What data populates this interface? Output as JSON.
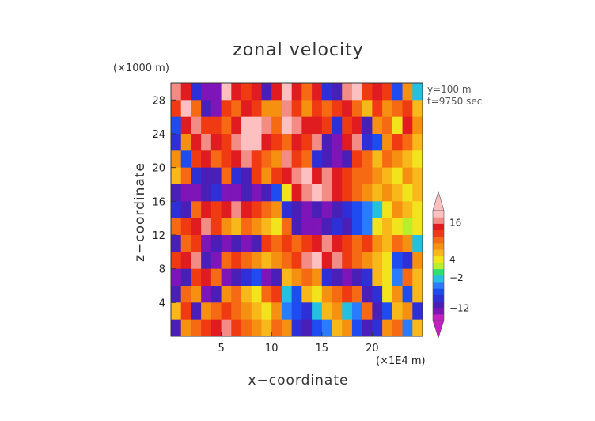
{
  "chart_data": {
    "type": "heatmap",
    "title": "zonal velocity",
    "xlabel": "x−coordinate",
    "ylabel": "z−coordinate",
    "x_unit_label": "(×1E4 m)",
    "y_unit_label": "(×1000 m)",
    "annotations": [
      "y=100 m",
      "t=9750 sec"
    ],
    "xlim": [
      0,
      25
    ],
    "ylim": [
      0,
      30
    ],
    "x_ticks": [
      "5",
      "10",
      "15",
      "20"
    ],
    "y_ticks": [
      "4",
      "8",
      "12",
      "16",
      "20",
      "24",
      "28"
    ],
    "colorbar": {
      "tick_labels": [
        "16",
        "4",
        "−2",
        "−12"
      ],
      "tick_values": [
        16,
        4,
        -2,
        -12
      ],
      "levels": [
        -16,
        -14,
        -12,
        -10,
        -8,
        -6,
        -4,
        -2,
        0,
        2,
        4,
        6,
        8,
        10,
        12,
        14,
        16,
        20
      ],
      "colors": [
        "#c41fc0",
        "#7d15b8",
        "#4a1fb8",
        "#2f2fd8",
        "#1f4cf0",
        "#2a7cff",
        "#25c0e0",
        "#2fe070",
        "#b8ee2c",
        "#f2e41c",
        "#f8b81a",
        "#f59010",
        "#f76a14",
        "#f03a12",
        "#e01c20",
        "#f48c86",
        "#fcc0c0"
      ],
      "extend": "both"
    },
    "grid": false,
    "z_values": [
      [
        14,
        12,
        -10,
        -14,
        -14,
        18,
        12,
        10,
        12,
        -12,
        12,
        18,
        12,
        8,
        12,
        -10,
        -12,
        14,
        16,
        10,
        12,
        10,
        -8,
        6,
        -4
      ],
      [
        10,
        16,
        8,
        -12,
        -14,
        10,
        8,
        12,
        10,
        6,
        6,
        14,
        10,
        6,
        10,
        8,
        10,
        12,
        8,
        4,
        10,
        6,
        8,
        10,
        4
      ],
      [
        -8,
        12,
        14,
        10,
        10,
        8,
        12,
        16,
        18,
        14,
        8,
        18,
        14,
        12,
        12,
        10,
        -10,
        10,
        12,
        -12,
        6,
        8,
        2,
        12,
        6
      ],
      [
        -10,
        6,
        12,
        14,
        12,
        10,
        14,
        18,
        16,
        12,
        10,
        8,
        12,
        10,
        14,
        -12,
        -14,
        12,
        14,
        -10,
        -8,
        6,
        10,
        8,
        4
      ],
      [
        6,
        -8,
        10,
        12,
        8,
        10,
        12,
        14,
        10,
        8,
        6,
        14,
        10,
        8,
        -10,
        -12,
        -14,
        -12,
        10,
        8,
        4,
        8,
        6,
        4,
        2
      ],
      [
        4,
        8,
        -10,
        -12,
        -12,
        8,
        -10,
        -12,
        10,
        6,
        10,
        12,
        14,
        16,
        12,
        14,
        12,
        10,
        8,
        8,
        6,
        4,
        2,
        6,
        4
      ],
      [
        -12,
        -14,
        -14,
        -12,
        -10,
        -14,
        -14,
        -12,
        -14,
        -12,
        -8,
        2,
        12,
        14,
        16,
        14,
        12,
        10,
        8,
        6,
        4,
        6,
        4,
        2,
        4
      ],
      [
        -10,
        -12,
        8,
        12,
        10,
        12,
        14,
        12,
        10,
        8,
        6,
        -10,
        -12,
        -14,
        -12,
        -14,
        -12,
        -10,
        -8,
        -6,
        -4,
        2,
        6,
        4,
        2
      ],
      [
        8,
        10,
        12,
        14,
        10,
        6,
        4,
        8,
        6,
        4,
        2,
        8,
        -12,
        -14,
        -14,
        -12,
        -10,
        -12,
        -8,
        -6,
        2,
        4,
        2,
        0,
        2
      ],
      [
        -12,
        8,
        10,
        -14,
        -12,
        -14,
        -12,
        -14,
        -12,
        10,
        8,
        10,
        8,
        10,
        12,
        14,
        12,
        10,
        8,
        10,
        6,
        4,
        8,
        6,
        -4
      ],
      [
        10,
        12,
        14,
        -12,
        -14,
        8,
        10,
        8,
        6,
        4,
        6,
        8,
        10,
        14,
        16,
        12,
        14,
        10,
        8,
        6,
        4,
        2,
        -8,
        -10,
        6
      ],
      [
        -14,
        -12,
        10,
        12,
        8,
        -14,
        -12,
        -10,
        -8,
        -14,
        -12,
        4,
        6,
        8,
        6,
        -10,
        -12,
        -14,
        -12,
        -10,
        4,
        2,
        -6,
        8,
        4
      ],
      [
        -12,
        8,
        6,
        -14,
        -12,
        6,
        8,
        4,
        2,
        8,
        10,
        -4,
        -8,
        4,
        2,
        6,
        8,
        10,
        8,
        -12,
        -10,
        2,
        6,
        -8,
        4
      ],
      [
        4,
        10,
        -12,
        6,
        8,
        10,
        8,
        6,
        4,
        2,
        6,
        -6,
        -8,
        -10,
        -4,
        4,
        6,
        -4,
        -6,
        8,
        -12,
        -8,
        4,
        6,
        -10
      ],
      [
        -12,
        6,
        8,
        10,
        12,
        14,
        10,
        8,
        6,
        4,
        8,
        6,
        -10,
        -12,
        -8,
        -6,
        4,
        6,
        -8,
        -12,
        -10,
        6,
        8,
        -6,
        4
      ]
    ]
  }
}
